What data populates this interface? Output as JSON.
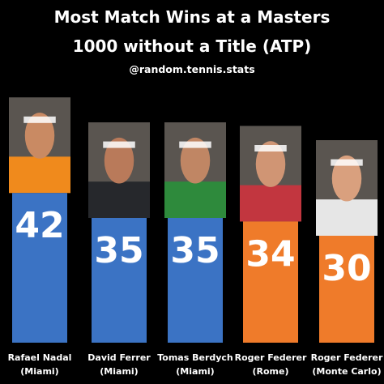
{
  "title_line1": "Most Match Wins at a Masters",
  "title_line2": "1000 without a Title (ATP)",
  "credit": "@random.tennis.stats",
  "colors": {
    "background": "#000000",
    "blue": "#3b73c4",
    "orange": "#ef7b2a",
    "text": "#ffffff"
  },
  "chart_data": {
    "type": "bar",
    "categories": [
      [
        "Rafael Nadal",
        "(Miami)"
      ],
      [
        "David Ferrer",
        "(Miami)"
      ],
      [
        "Tomas Berdych",
        "(Miami)"
      ],
      [
        "Roger Federer",
        "(Rome)"
      ],
      [
        "Roger Federer",
        "(Monte Carlo)"
      ]
    ],
    "values": [
      42,
      35,
      35,
      34,
      30
    ],
    "bar_colors": [
      "blue",
      "blue",
      "blue",
      "orange",
      "orange"
    ],
    "data_labels": [
      "42",
      "35",
      "35",
      "34",
      "30"
    ],
    "grid": false,
    "legend": "none",
    "xlabel": "",
    "ylabel": ""
  }
}
